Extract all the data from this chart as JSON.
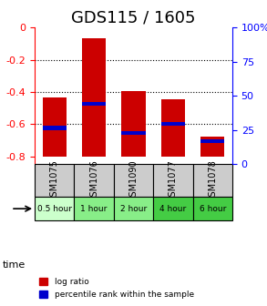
{
  "title": "GDS115 / 1605",
  "samples": [
    "GSM1075",
    "GSM1076",
    "GSM1090",
    "GSM1077",
    "GSM1078"
  ],
  "time_labels": [
    "0.5 hour",
    "1 hour",
    "2 hour",
    "4 hour",
    "6 hour"
  ],
  "time_colors": [
    "#ccffcc",
    "#88ee88",
    "#88ee88",
    "#44cc44",
    "#44cc44"
  ],
  "log_ratios": [
    -0.435,
    -0.065,
    -0.395,
    -0.445,
    -0.68
  ],
  "log_ratio_bottoms": [
    -0.8,
    -0.8,
    -0.8,
    -0.8,
    -0.8
  ],
  "percentile_ranks": [
    -0.625,
    -0.475,
    -0.655,
    -0.6,
    -0.705
  ],
  "bar_width": 0.6,
  "ylim_left": [
    -0.85,
    0.0
  ],
  "yticks_left": [
    0.0,
    -0.2,
    -0.4,
    -0.6,
    -0.8
  ],
  "ytick_labels_left": [
    "0",
    "-0.2",
    "-0.4",
    "-0.6",
    "-0.8"
  ],
  "ylim_right": [
    0,
    100
  ],
  "yticks_right": [
    0,
    25,
    50,
    75,
    100
  ],
  "ytick_labels_right": [
    "0",
    "25",
    "50",
    "75",
    "100%"
  ],
  "bar_color": "#cc0000",
  "percentile_color": "#0000cc",
  "grid_color": "#000000",
  "bg_color": "#ffffff",
  "plot_bg": "#ffffff",
  "title_fontsize": 13,
  "label_fontsize": 8,
  "tick_fontsize": 8,
  "legend_label_ratio": "log ratio",
  "legend_label_percentile": "percentile rank within the sample"
}
